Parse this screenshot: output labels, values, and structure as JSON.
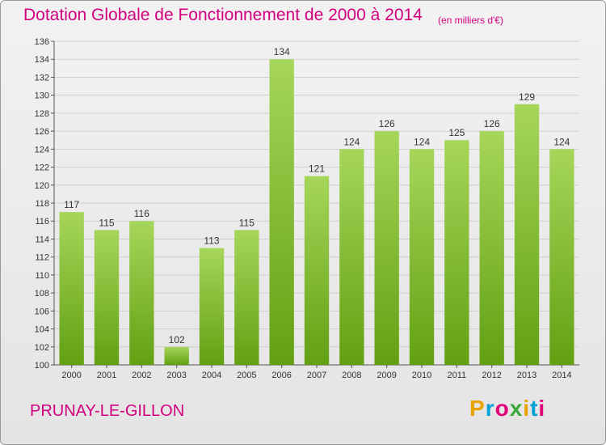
{
  "header": {
    "title": "Dotation Globale de Fonctionnement de 2000 à 2014",
    "subtitle": "(en milliers d'€)"
  },
  "footer": {
    "city": "PRUNAY-LE-GILLON",
    "logo_letters": [
      "P",
      "r",
      "o",
      "x",
      "i",
      "t",
      "i"
    ],
    "logo_colors": [
      "#e8a200",
      "#00a0d6",
      "#e0007a",
      "#3aa93a",
      "#e8a200",
      "#00a0d6",
      "#e0007a"
    ]
  },
  "chart_data": {
    "type": "bar",
    "title": "Dotation Globale de Fonctionnement de 2000 à 2014",
    "subtitle": "(en milliers d'€)",
    "categories": [
      "2000",
      "2001",
      "2002",
      "2003",
      "2004",
      "2005",
      "2006",
      "2007",
      "2008",
      "2009",
      "2010",
      "2011",
      "2012",
      "2013",
      "2014"
    ],
    "values": [
      117,
      115,
      116,
      102,
      113,
      115,
      134,
      121,
      124,
      126,
      124,
      125,
      126,
      129,
      124
    ],
    "ylim": [
      100,
      136
    ],
    "yticks": [
      100,
      102,
      104,
      106,
      108,
      110,
      112,
      114,
      116,
      118,
      120,
      122,
      124,
      126,
      128,
      130,
      132,
      134,
      136
    ],
    "grid": true,
    "bar_color_top": "#a6d65a",
    "bar_color_bottom": "#62a012"
  }
}
